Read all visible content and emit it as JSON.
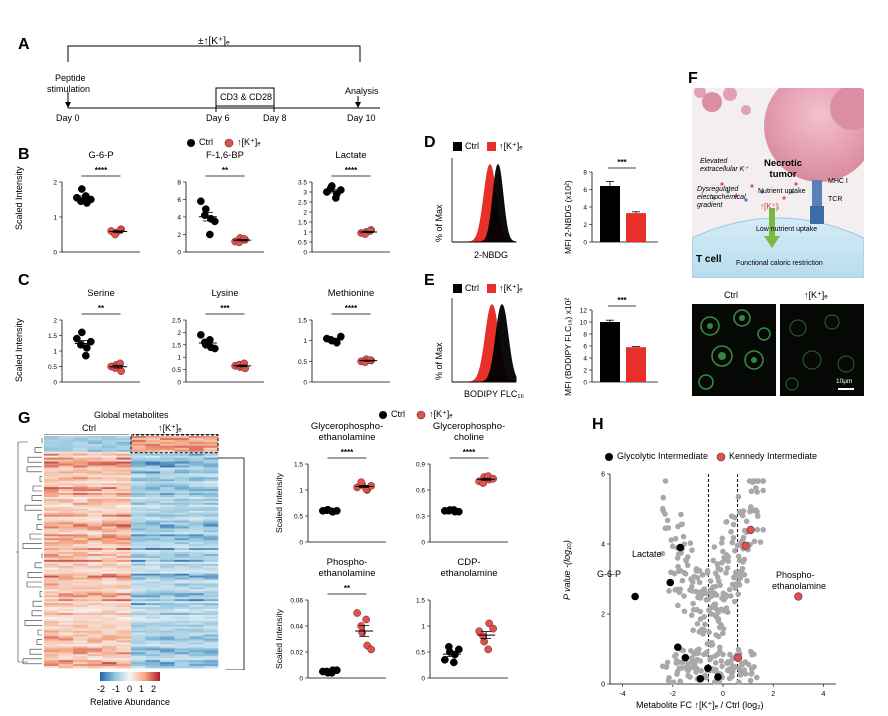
{
  "panels": {
    "A": "A",
    "B": "B",
    "C": "C",
    "D": "D",
    "E": "E",
    "F": "F",
    "G": "G",
    "H": "H"
  },
  "panelA": {
    "top_label": "±↑[K⁺]ₑ",
    "peptide": "Peptide",
    "stimulation": "stimulation",
    "analysis": "Analysis",
    "box": "CD3 & CD28",
    "days": [
      "Day 0",
      "Day 6",
      "Day 8",
      "Day 10"
    ]
  },
  "legend": {
    "ctrl": "Ctrl",
    "k": "↑[K⁺]ₑ"
  },
  "panelB": {
    "ylabel": "Scaled Intensity",
    "plots": [
      {
        "title": "G-6-P",
        "sig": "****",
        "ticks": [
          "0",
          "1",
          "2"
        ]
      },
      {
        "title": "F-1,6-BP",
        "sig": "**",
        "ticks": [
          "0",
          "2",
          "4",
          "6",
          "8"
        ]
      },
      {
        "title": "Lactate",
        "sig": "****",
        "ticks": [
          "0",
          "0.5",
          "1",
          "1.5",
          "2",
          "2.5",
          "3",
          "3.5"
        ]
      }
    ]
  },
  "panelC": {
    "ylabel": "Scaled Intensity",
    "plots": [
      {
        "title": "Serine",
        "sig": "**",
        "ticks": [
          "0",
          "0.5",
          "1",
          "1.5",
          "2"
        ]
      },
      {
        "title": "Lysine",
        "sig": "***",
        "ticks": [
          "0",
          "0.5",
          "1",
          "1.5",
          "2",
          "2.5"
        ]
      },
      {
        "title": "Methionine",
        "sig": "****",
        "ticks": [
          "0",
          "0.5",
          "1",
          "1.5"
        ]
      }
    ]
  },
  "panelD": {
    "ylabel": "% of Max",
    "xlabel": "2-NBDG",
    "bar_ylabel": "MFI 2-NBDG (x10²)",
    "sig": "***",
    "ticks": [
      "0",
      "2",
      "4",
      "6",
      "8"
    ]
  },
  "panelE": {
    "ylabel": "% of Max",
    "xlabel": "BODIPY FLC₁₆",
    "bar_ylabel": "MFI (BODIPY FLC₁₆) x10²",
    "sig": "***",
    "ticks": [
      "0",
      "2",
      "4",
      "6",
      "8",
      "10",
      "12"
    ]
  },
  "panelF": {
    "tumor": "Necrotic tumor",
    "elevated": "Elevated extracellular K⁺",
    "dysreg": "Dysregulated electrochemical gradient",
    "nutrient": "Nutrient uptake",
    "mhc": "MHC I",
    "tcr": "TCR",
    "k_up": "↑[K⁺]ᵢ",
    "low": "Low nutrient uptake",
    "tcell": "T cell",
    "func": "Functional caloric restriction",
    "ctrl": "Ctrl",
    "k": "↑[K⁺]ₑ",
    "scale": "10μm"
  },
  "panelG": {
    "title": "Global metabolites",
    "ctrl": "Ctrl",
    "k": "↑[K⁺]ₑ",
    "colorbar_ticks": [
      "-2",
      "-1",
      "0",
      "1",
      "2"
    ],
    "colorbar_label": "Relative Abundance",
    "plots": [
      {
        "title1": "Glycerophospho-",
        "title2": "ethanolamine",
        "sig": "****",
        "ticks": [
          "0",
          "0.5",
          "1",
          "1.5"
        ],
        "ylabel": "Scaled Intensity"
      },
      {
        "title1": "Glycerophospho-",
        "title2": "choline",
        "sig": "****",
        "ticks": [
          "0",
          "0.3",
          "0.6",
          "0.9"
        ],
        "ylabel": ""
      },
      {
        "title1": "Phospho-",
        "title2": "ethanolamine",
        "sig": "**",
        "ticks": [
          "0",
          "0.02",
          "0.04",
          "0.06"
        ],
        "ylabel": "Scaled Intensity"
      },
      {
        "title1": "CDP-",
        "title2": "ethanolamine",
        "sig": "",
        "ticks": [
          "0",
          "0.5",
          "1",
          "1.5"
        ],
        "ylabel": ""
      }
    ]
  },
  "panelH": {
    "legend_glyco": "Glycolytic Intermediate",
    "legend_kennedy": "Kennedy Intermediate",
    "xlabel": "Metabolite FC ↑[K⁺]ₑ / Ctrl (log₂)",
    "ylabel": "P value -(log₁₀)",
    "x_ticks": [
      "-4",
      "-2",
      "0",
      "2",
      "4"
    ],
    "y_ticks": [
      "0",
      "2",
      "4",
      "6"
    ],
    "labels": {
      "lactate": "Lactate",
      "g6p": "G-6-P",
      "phospho1": "Phospho-",
      "phospho2": "ethanolamine"
    }
  },
  "colors": {
    "ctrl": "#000000",
    "k": "#e8302a",
    "k_point": "#d9534f",
    "heat_hi": "#b2182b",
    "heat_lo": "#2166ac",
    "scatter_grey": "#a8a8a8"
  }
}
